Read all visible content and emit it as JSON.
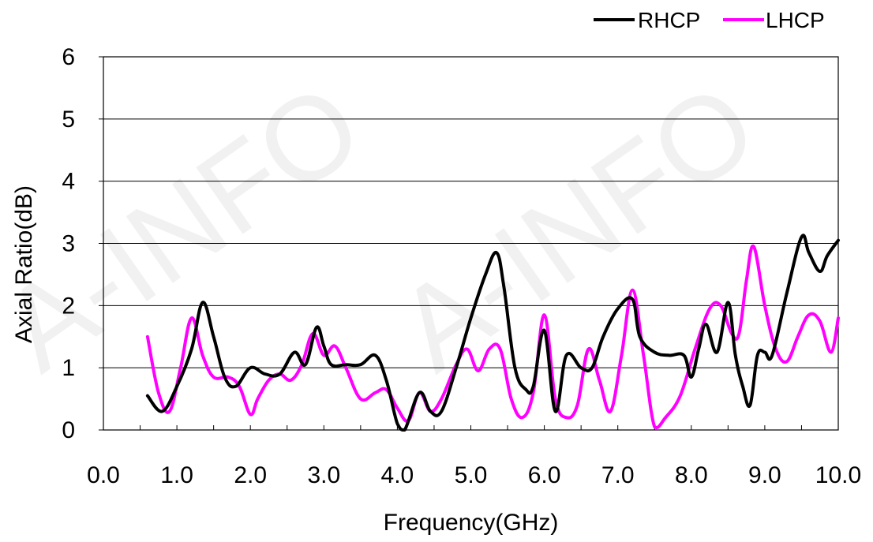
{
  "chart_data": {
    "type": "line",
    "title": "",
    "xlabel": "Frequency(GHz)",
    "ylabel": "Axial Ratio(dB)",
    "xlim": [
      0.0,
      10.0
    ],
    "ylim": [
      0,
      6
    ],
    "x_tick_labels": [
      "0.0",
      "1.0",
      "2.0",
      "3.0",
      "4.0",
      "5.0",
      "6.0",
      "7.0",
      "8.0",
      "9.0",
      "10.0"
    ],
    "y_tick_labels": [
      "0",
      "1",
      "2",
      "3",
      "4",
      "5",
      "6"
    ],
    "grid": "horizontal",
    "legend_position": "top-right",
    "watermark": "A-INFO",
    "series": [
      {
        "name": "RHCP",
        "color": "#000000",
        "x": [
          0.6,
          0.8,
          1.0,
          1.2,
          1.35,
          1.5,
          1.65,
          1.8,
          2.0,
          2.2,
          2.4,
          2.6,
          2.75,
          2.9,
          3.0,
          3.1,
          3.3,
          3.5,
          3.7,
          3.85,
          4.0,
          4.1,
          4.3,
          4.45,
          4.6,
          4.8,
          5.0,
          5.2,
          5.35,
          5.45,
          5.6,
          5.75,
          5.85,
          6.0,
          6.15,
          6.3,
          6.5,
          6.65,
          6.8,
          7.0,
          7.2,
          7.3,
          7.5,
          7.7,
          7.9,
          8.0,
          8.1,
          8.2,
          8.35,
          8.5,
          8.6,
          8.7,
          8.8,
          8.9,
          9.0,
          9.1,
          9.3,
          9.5,
          9.6,
          9.75,
          9.85,
          10.0
        ],
        "y": [
          0.55,
          0.3,
          0.7,
          1.3,
          2.05,
          1.5,
          0.85,
          0.7,
          1.0,
          0.9,
          0.9,
          1.25,
          1.05,
          1.65,
          1.35,
          1.05,
          1.05,
          1.05,
          1.2,
          0.8,
          0.1,
          0.0,
          0.6,
          0.3,
          0.3,
          1.0,
          1.8,
          2.5,
          2.85,
          2.3,
          1.0,
          0.65,
          0.7,
          1.6,
          0.3,
          1.2,
          1.0,
          1.0,
          1.5,
          1.95,
          2.1,
          1.5,
          1.25,
          1.2,
          1.2,
          0.85,
          1.3,
          1.7,
          1.25,
          2.05,
          1.2,
          0.7,
          0.4,
          1.2,
          1.25,
          1.2,
          2.2,
          3.1,
          2.85,
          2.55,
          2.8,
          3.05
        ]
      },
      {
        "name": "LHCP",
        "color": "#ff00ff",
        "x": [
          0.6,
          0.75,
          0.9,
          1.05,
          1.2,
          1.35,
          1.5,
          1.7,
          1.85,
          2.0,
          2.1,
          2.25,
          2.4,
          2.55,
          2.7,
          2.85,
          3.0,
          3.15,
          3.3,
          3.5,
          3.7,
          3.85,
          4.0,
          4.15,
          4.3,
          4.45,
          4.6,
          4.8,
          4.95,
          5.1,
          5.25,
          5.4,
          5.55,
          5.7,
          5.85,
          6.0,
          6.15,
          6.3,
          6.45,
          6.6,
          6.75,
          6.9,
          7.05,
          7.2,
          7.35,
          7.5,
          7.65,
          7.85,
          8.05,
          8.25,
          8.4,
          8.55,
          8.65,
          8.75,
          8.85,
          9.0,
          9.15,
          9.3,
          9.45,
          9.6,
          9.75,
          9.9,
          10.0
        ],
        "y": [
          1.5,
          0.6,
          0.3,
          1.0,
          1.8,
          1.2,
          0.85,
          0.85,
          0.7,
          0.25,
          0.5,
          0.8,
          0.9,
          0.8,
          1.05,
          1.55,
          1.2,
          1.35,
          1.0,
          0.5,
          0.6,
          0.65,
          0.35,
          0.15,
          0.6,
          0.3,
          0.5,
          1.05,
          1.3,
          0.95,
          1.3,
          1.3,
          0.5,
          0.2,
          0.6,
          1.85,
          0.5,
          0.2,
          0.4,
          1.3,
          0.8,
          0.3,
          1.2,
          2.25,
          1.2,
          0.05,
          0.2,
          0.55,
          1.3,
          1.95,
          2.0,
          1.55,
          1.55,
          2.4,
          2.95,
          2.0,
          1.3,
          1.1,
          1.5,
          1.85,
          1.75,
          1.25,
          1.8
        ]
      }
    ]
  }
}
